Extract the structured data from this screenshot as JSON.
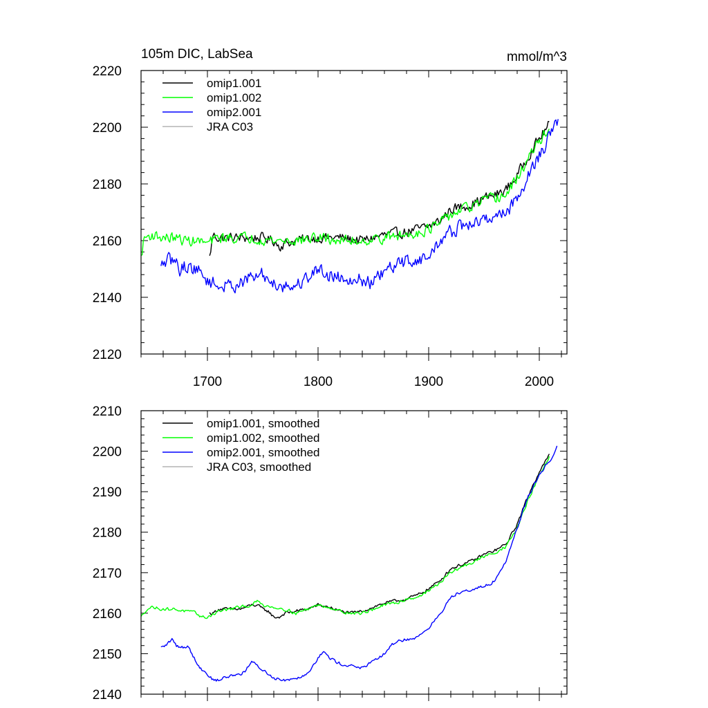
{
  "chart_data": [
    {
      "type": "line",
      "title": "105m DIC, LabSea",
      "units": "mmol/m^3",
      "xlim": [
        1640,
        2025
      ],
      "ylim": [
        2120,
        2220
      ],
      "x_ticks": [
        1700,
        1800,
        1900,
        2000
      ],
      "x_tick_labels": [
        "1700",
        "1800",
        "1900",
        "2000"
      ],
      "y_ticks": [
        2120,
        2140,
        2160,
        2180,
        2200,
        2220
      ],
      "y_tick_labels": [
        "2120",
        "2140",
        "2160",
        "2180",
        "2200",
        "2220"
      ],
      "show_x_tick_labels": true,
      "legend_position": "top-left",
      "series": [
        {
          "name": "omip1.001",
          "color": "#000000",
          "x": [
            1702,
            1705,
            1710,
            1720,
            1730,
            1740,
            1750,
            1760,
            1765,
            1770,
            1780,
            1800,
            1820,
            1840,
            1860,
            1880,
            1900,
            1910,
            1920,
            1930,
            1940,
            1950,
            1960,
            1970,
            1980,
            1990,
            2000,
            2009
          ],
          "y": [
            2154,
            2162,
            2161,
            2161,
            2161,
            2161,
            2161,
            2160,
            2158,
            2159,
            2160,
            2161,
            2161,
            2160,
            2162,
            2163,
            2165,
            2167,
            2171,
            2172,
            2173,
            2175,
            2176,
            2178,
            2183,
            2190,
            2196,
            2201
          ],
          "noise": 1.6
        },
        {
          "name": "omip1.002",
          "color": "#00ff00",
          "x": [
            1640,
            1643,
            1650,
            1660,
            1670,
            1680,
            1690,
            1700,
            1710,
            1720,
            1740,
            1760,
            1780,
            1800,
            1820,
            1840,
            1860,
            1880,
            1900,
            1910,
            1920,
            1930,
            1940,
            1950,
            1960,
            1970,
            1980,
            1990,
            2000,
            2009
          ],
          "y": [
            2154,
            2161,
            2162,
            2161,
            2161,
            2160,
            2160,
            2159,
            2161,
            2161,
            2161,
            2160,
            2160,
            2161,
            2160,
            2160,
            2161,
            2162,
            2164,
            2166,
            2169,
            2171,
            2172,
            2174,
            2175,
            2176,
            2182,
            2189,
            2195,
            2200
          ],
          "noise": 1.7
        },
        {
          "name": "omip2.001",
          "color": "#0000ff",
          "x": [
            1658,
            1660,
            1665,
            1670,
            1675,
            1680,
            1690,
            1700,
            1710,
            1720,
            1730,
            1740,
            1750,
            1760,
            1770,
            1780,
            1790,
            1800,
            1810,
            1820,
            1830,
            1840,
            1850,
            1860,
            1870,
            1880,
            1890,
            1900,
            1910,
            1920,
            1930,
            1940,
            1950,
            1960,
            1970,
            1980,
            1990,
            2000,
            2010,
            2017
          ],
          "y": [
            2150,
            2152,
            2153,
            2153,
            2150,
            2151,
            2150,
            2146,
            2144,
            2144,
            2145,
            2147,
            2148,
            2145,
            2144,
            2144,
            2147,
            2150,
            2148,
            2147,
            2147,
            2146,
            2145,
            2149,
            2151,
            2153,
            2153,
            2154,
            2160,
            2163,
            2165,
            2166,
            2167,
            2169,
            2170,
            2175,
            2183,
            2190,
            2197,
            2202
          ],
          "noise": 2.2
        },
        {
          "name": "JRA C03",
          "color": "#b4b4b4",
          "x": [],
          "y": []
        }
      ]
    },
    {
      "type": "line",
      "title": "",
      "units": "",
      "xlim": [
        1640,
        2025
      ],
      "ylim": [
        2140,
        2210
      ],
      "x_ticks": [
        1700,
        1800,
        1900,
        2000
      ],
      "x_tick_labels": [],
      "y_ticks": [
        2140,
        2150,
        2160,
        2170,
        2180,
        2190,
        2200,
        2210
      ],
      "y_tick_labels": [
        "2140",
        "2150",
        "2160",
        "2170",
        "2180",
        "2190",
        "2200",
        "2210"
      ],
      "show_x_tick_labels": false,
      "legend_position": "top-left",
      "series": [
        {
          "name": "omip1.001, smoothed",
          "color": "#000000",
          "x": [
            1702,
            1705,
            1710,
            1715,
            1720,
            1725,
            1730,
            1740,
            1745,
            1750,
            1755,
            1760,
            1765,
            1770,
            1780,
            1790,
            1800,
            1810,
            1820,
            1830,
            1840,
            1850,
            1860,
            1870,
            1880,
            1890,
            1900,
            1910,
            1920,
            1930,
            1940,
            1950,
            1960,
            1970,
            1980,
            1990,
            2000,
            2009
          ],
          "y": [
            2160,
            2160,
            2161,
            2161,
            2161,
            2161,
            2161,
            2162,
            2162,
            2161,
            2160.5,
            2159,
            2159,
            2160,
            2160.5,
            2161,
            2162,
            2161.5,
            2160.5,
            2160,
            2160.5,
            2161.5,
            2162.5,
            2163,
            2163.5,
            2164.5,
            2166,
            2168,
            2171,
            2172,
            2173,
            2174.5,
            2175.5,
            2177,
            2182,
            2189,
            2195,
            2199
          ],
          "noise": 0.35
        },
        {
          "name": "omip1.002, smoothed",
          "color": "#00ff00",
          "x": [
            1640,
            1645,
            1650,
            1660,
            1670,
            1680,
            1690,
            1695,
            1700,
            1710,
            1720,
            1730,
            1740,
            1745,
            1750,
            1760,
            1770,
            1780,
            1790,
            1800,
            1810,
            1820,
            1830,
            1840,
            1850,
            1860,
            1870,
            1880,
            1890,
            1900,
            1910,
            1920,
            1930,
            1940,
            1950,
            1960,
            1970,
            1980,
            1990,
            2000,
            2009
          ],
          "y": [
            2159,
            2161,
            2161.5,
            2161,
            2161,
            2160.5,
            2160,
            2159,
            2159,
            2160.5,
            2161,
            2161.5,
            2162,
            2163,
            2162,
            2161.5,
            2161,
            2160,
            2161,
            2162,
            2161.5,
            2160.5,
            2160,
            2160,
            2161,
            2162,
            2162.5,
            2163.5,
            2164,
            2165.5,
            2167.5,
            2170,
            2171.5,
            2172.5,
            2174,
            2175,
            2176.5,
            2181,
            2188,
            2194,
            2198.5
          ],
          "noise": 0.35
        },
        {
          "name": "omip2.001, smoothed",
          "color": "#0000ff",
          "x": [
            1658,
            1662,
            1668,
            1672,
            1678,
            1682,
            1690,
            1695,
            1700,
            1705,
            1710,
            1720,
            1730,
            1735,
            1740,
            1745,
            1750,
            1760,
            1770,
            1780,
            1790,
            1800,
            1805,
            1810,
            1820,
            1830,
            1840,
            1850,
            1860,
            1870,
            1880,
            1890,
            1900,
            1910,
            1920,
            1930,
            1940,
            1950,
            1960,
            1970,
            1980,
            1990,
            2000,
            2010,
            2016
          ],
          "y": [
            2151.5,
            2152,
            2153.5,
            2152,
            2151.5,
            2152,
            2148,
            2146,
            2145,
            2143.5,
            2143.5,
            2144.5,
            2145,
            2146,
            2148,
            2147,
            2146,
            2144,
            2143.5,
            2144,
            2145,
            2149,
            2150.5,
            2149,
            2147.5,
            2147,
            2146.5,
            2148,
            2150,
            2153,
            2153.5,
            2154,
            2156.5,
            2159.5,
            2164,
            2165.5,
            2166,
            2166.5,
            2168,
            2173,
            2181,
            2189,
            2194,
            2198,
            2201
          ],
          "noise": 0.35
        },
        {
          "name": "JRA C03, smoothed",
          "color": "#b4b4b4",
          "x": [],
          "y": []
        }
      ]
    }
  ]
}
